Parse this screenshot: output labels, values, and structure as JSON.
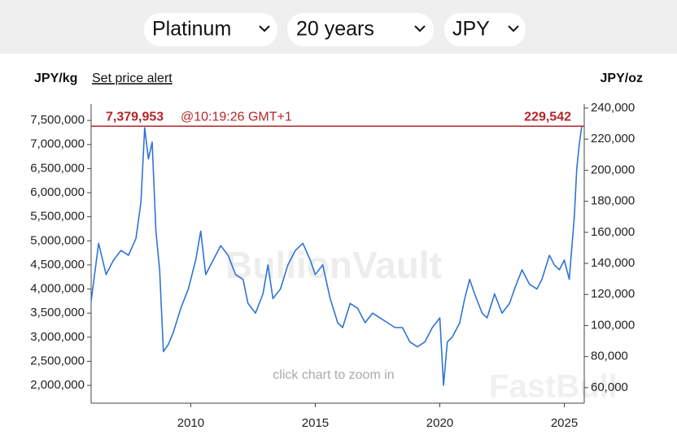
{
  "controls": {
    "metal": "Platinum",
    "period": "20 years",
    "currency": "JPY",
    "alert_link": "Set price alert"
  },
  "chart_data": {
    "type": "line",
    "ylabel": "JPY/kg",
    "y2label": "JPY/oz",
    "watermark": "BullionVault",
    "hint": "click chart to zoom in",
    "overlay_watermark": "FastBull",
    "x": [
      2006.0,
      2006.3,
      2006.6,
      2006.9,
      2007.2,
      2007.5,
      2007.8,
      2008.0,
      2008.15,
      2008.3,
      2008.45,
      2008.6,
      2008.75,
      2008.9,
      2009.1,
      2009.3,
      2009.6,
      2009.9,
      2010.2,
      2010.4,
      2010.6,
      2010.9,
      2011.2,
      2011.5,
      2011.8,
      2012.1,
      2012.3,
      2012.6,
      2012.9,
      2013.1,
      2013.3,
      2013.6,
      2013.9,
      2014.2,
      2014.5,
      2014.8,
      2015.0,
      2015.3,
      2015.6,
      2015.9,
      2016.1,
      2016.4,
      2016.7,
      2017.0,
      2017.3,
      2017.6,
      2017.9,
      2018.2,
      2018.5,
      2018.8,
      2019.1,
      2019.4,
      2019.7,
      2020.0,
      2020.15,
      2020.3,
      2020.5,
      2020.8,
      2021.0,
      2021.2,
      2021.4,
      2021.7,
      2021.9,
      2022.2,
      2022.5,
      2022.8,
      2023.0,
      2023.3,
      2023.6,
      2023.9,
      2024.1,
      2024.4,
      2024.6,
      2024.8,
      2025.0,
      2025.2,
      2025.4,
      2025.5,
      2025.6,
      2025.7
    ],
    "series": [
      {
        "name": "Platinum",
        "color": "#2f74d6",
        "values": [
          3750000,
          4950000,
          4300000,
          4600000,
          4800000,
          4700000,
          5050000,
          5800000,
          7350000,
          6700000,
          7050000,
          5200000,
          4400000,
          2700000,
          2850000,
          3100000,
          3600000,
          4000000,
          4600000,
          5200000,
          4300000,
          4600000,
          4900000,
          4700000,
          4300000,
          4200000,
          3700000,
          3500000,
          3900000,
          4500000,
          3800000,
          4000000,
          4500000,
          4800000,
          4950000,
          4600000,
          4300000,
          4500000,
          3800000,
          3300000,
          3200000,
          3700000,
          3600000,
          3300000,
          3500000,
          3400000,
          3300000,
          3200000,
          3200000,
          2900000,
          2800000,
          2900000,
          3200000,
          3400000,
          2000000,
          2900000,
          3000000,
          3300000,
          3800000,
          4200000,
          3900000,
          3500000,
          3400000,
          3900000,
          3500000,
          3700000,
          4000000,
          4400000,
          4100000,
          4000000,
          4200000,
          4700000,
          4500000,
          4400000,
          4600000,
          4200000,
          5500000,
          6500000,
          7000000,
          7379953
        ]
      }
    ],
    "xlim": [
      2006.0,
      2025.8
    ],
    "xticks": [
      2010,
      2015,
      2020,
      2025
    ],
    "ylim": [
      1630000,
      7840000
    ],
    "yticks": [
      {
        "value": 2000000,
        "label": "2,000,000"
      },
      {
        "value": 2500000,
        "label": "2,500,000"
      },
      {
        "value": 3000000,
        "label": "3,000,000"
      },
      {
        "value": 3500000,
        "label": "3,500,000"
      },
      {
        "value": 4000000,
        "label": "4,000,000"
      },
      {
        "value": 4500000,
        "label": "4,500,000"
      },
      {
        "value": 5000000,
        "label": "5,000,000"
      },
      {
        "value": 5500000,
        "label": "5,500,000"
      },
      {
        "value": 6000000,
        "label": "6,000,000"
      },
      {
        "value": 6500000,
        "label": "6,500,000"
      },
      {
        "value": 7000000,
        "label": "7,000,000"
      },
      {
        "value": 7500000,
        "label": "7,500,000"
      }
    ],
    "y2lim": [
      50000,
      242600
    ],
    "y2ticks": [
      {
        "value": 60000,
        "label": "60,000"
      },
      {
        "value": 80000,
        "label": "80,000"
      },
      {
        "value": 100000,
        "label": "100,000"
      },
      {
        "value": 120000,
        "label": "120,000"
      },
      {
        "value": 140000,
        "label": "140,000"
      },
      {
        "value": 160000,
        "label": "160,000"
      },
      {
        "value": 180000,
        "label": "180,000"
      },
      {
        "value": 200000,
        "label": "200,000"
      },
      {
        "value": 220000,
        "label": "220,000"
      },
      {
        "value": 240000,
        "label": "240,000"
      }
    ],
    "current_price": {
      "value": 7379953,
      "value_label": "7,379,953",
      "time_label": "@10:19:26 GMT+1",
      "y2_value": 229542,
      "y2_value_label": "229,542",
      "color": "#b3262b"
    }
  }
}
